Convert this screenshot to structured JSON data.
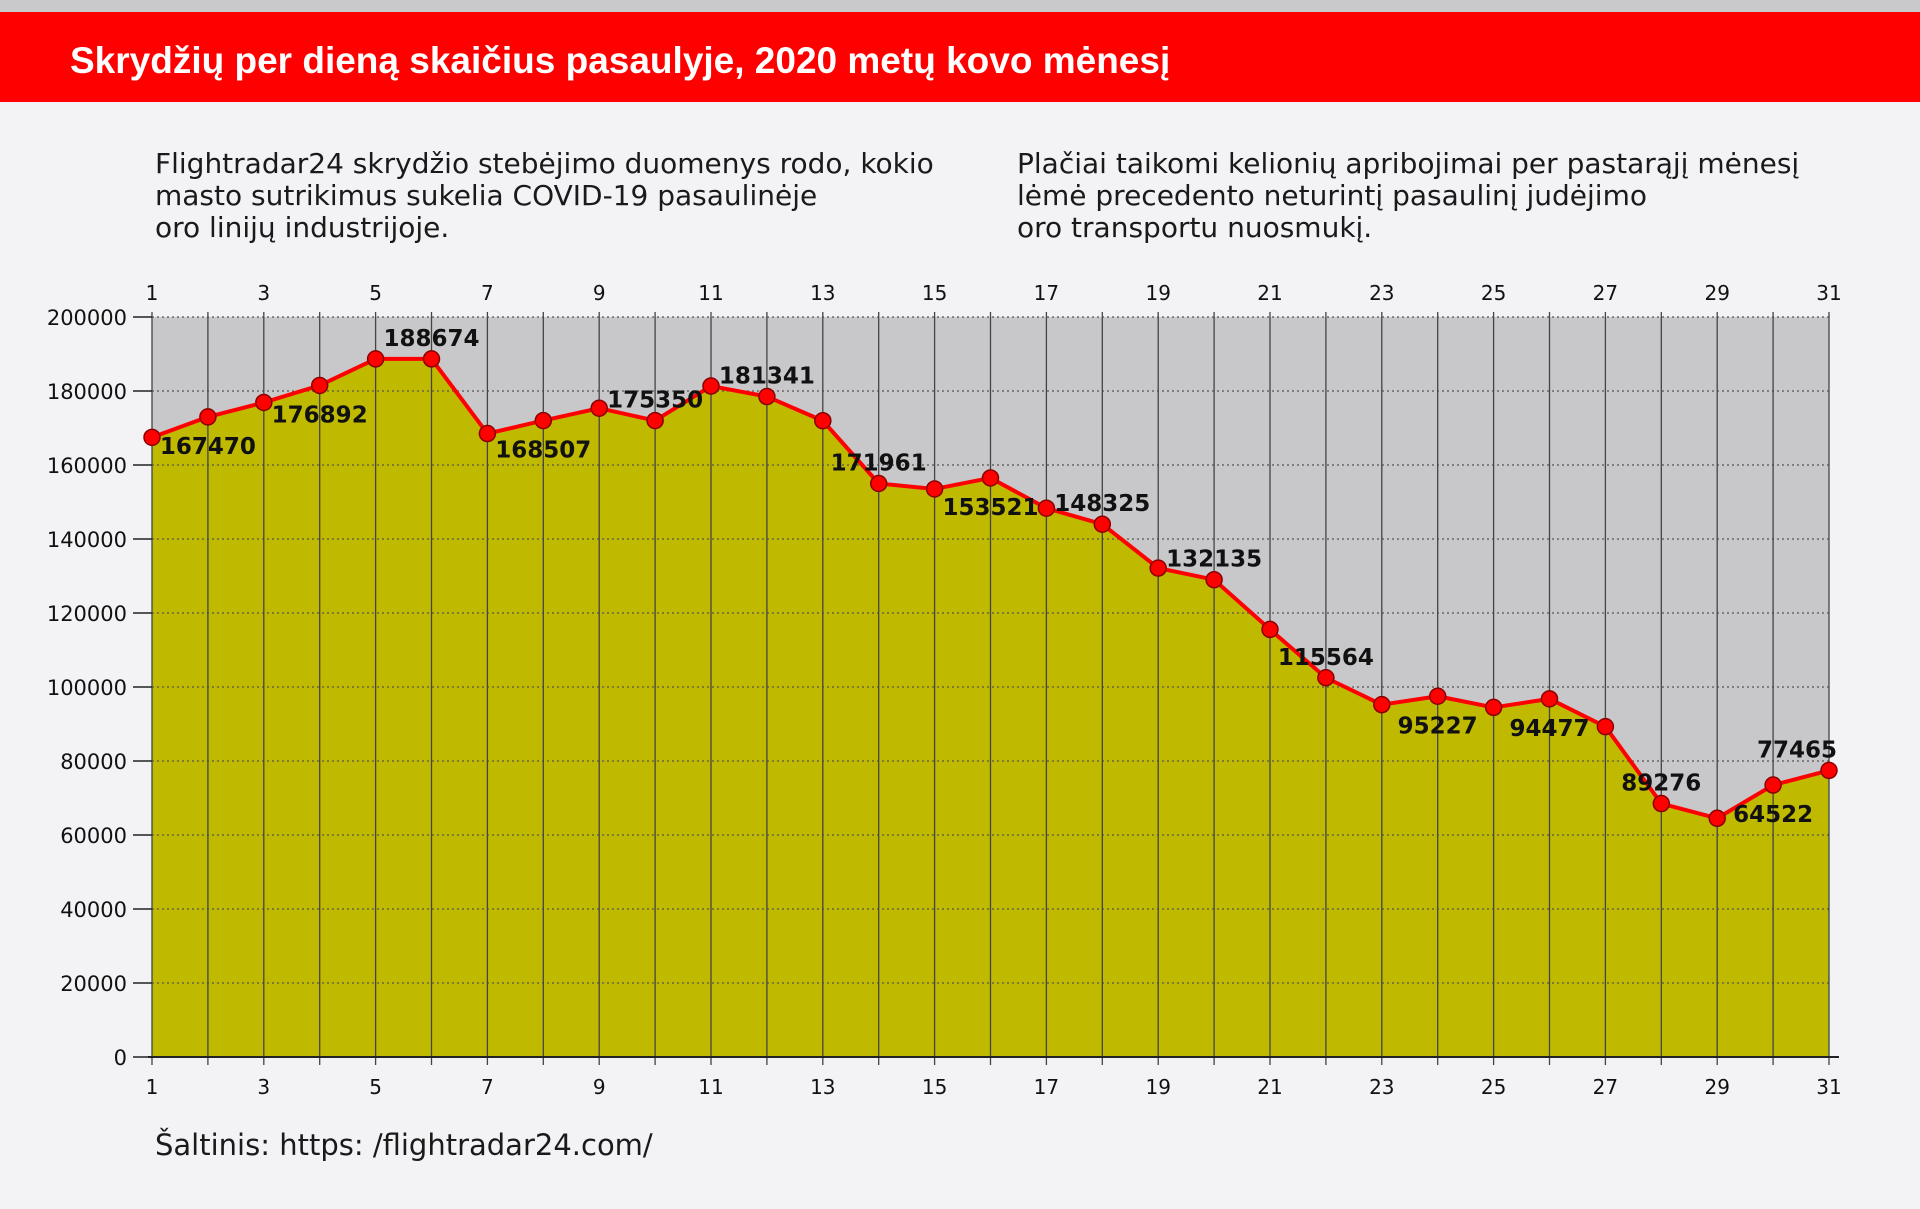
{
  "header": {
    "title": "Skrydžių per dieną skaičius pasaulyje, 2020 metų kovo mėnesį"
  },
  "intro_left": [
    "Flightradar24 skrydžio stebėjimo duomenys rodo, kokio",
    "masto sutrikimus sukelia COVID-19 pasaulinėje",
    "oro linijų industrijoje."
  ],
  "intro_right": [
    "Plačiai taikomi kelionių apribojimai per pastarąjį mėnesį",
    "lėmė precedento neturintį pasaulinį judėjimo",
    "oro transportu nuosmukį."
  ],
  "source": {
    "label": "Šaltinis: https: /flightradar24.com/"
  },
  "colors": {
    "title_bar": "#ff0000",
    "area_fill": "#bfba00",
    "plot_background": "#c8c7ca",
    "line": "#ff0000",
    "marker": "#ff0000"
  },
  "chart_data": {
    "type": "area",
    "x": [
      1,
      2,
      3,
      4,
      5,
      6,
      7,
      8,
      9,
      10,
      11,
      12,
      13,
      14,
      15,
      16,
      17,
      18,
      19,
      20,
      21,
      22,
      23,
      24,
      25,
      26,
      27,
      28,
      29,
      30,
      31
    ],
    "values": [
      167470,
      173000,
      176892,
      181500,
      188674,
      188674,
      168507,
      172000,
      175350,
      172000,
      181341,
      178500,
      171961,
      155000,
      153521,
      156500,
      148325,
      144000,
      132135,
      129000,
      115564,
      102500,
      95227,
      97500,
      94477,
      96800,
      89276,
      68500,
      64522,
      73500,
      77465
    ],
    "data_labels": [
      {
        "x": 2,
        "text": "167470"
      },
      {
        "x": 4,
        "text": "176892"
      },
      {
        "x": 6,
        "text": "188674"
      },
      {
        "x": 8,
        "text": "168507"
      },
      {
        "x": 10,
        "text": "175350"
      },
      {
        "x": 12,
        "text": "181341"
      },
      {
        "x": 14,
        "text": "171961"
      },
      {
        "x": 16,
        "text": "153521"
      },
      {
        "x": 18,
        "text": "148325"
      },
      {
        "x": 20,
        "text": "132135"
      },
      {
        "x": 22,
        "text": "115564"
      },
      {
        "x": 24,
        "text": "95227"
      },
      {
        "x": 26,
        "text": "94477"
      },
      {
        "x": 28,
        "text": "89276"
      },
      {
        "x": 30,
        "text": "64522"
      },
      {
        "x": 31,
        "text": "77465"
      }
    ],
    "x_tick_labels": [
      "1",
      "3",
      "5",
      "7",
      "9",
      "11",
      "13",
      "15",
      "17",
      "19",
      "21",
      "23",
      "25",
      "27",
      "29",
      "31"
    ],
    "y_tick_labels": [
      "0",
      "20000",
      "40000",
      "60000",
      "80000",
      "100000",
      "120000",
      "140000",
      "160000",
      "180000",
      "200000"
    ],
    "ylim": [
      0,
      200000
    ],
    "xlim": [
      1,
      31
    ],
    "grid": true,
    "title": "Skrydžių per dieną skaičius pasaulyje, 2020 metų kovo mėnesį",
    "xlabel": "",
    "ylabel": ""
  }
}
